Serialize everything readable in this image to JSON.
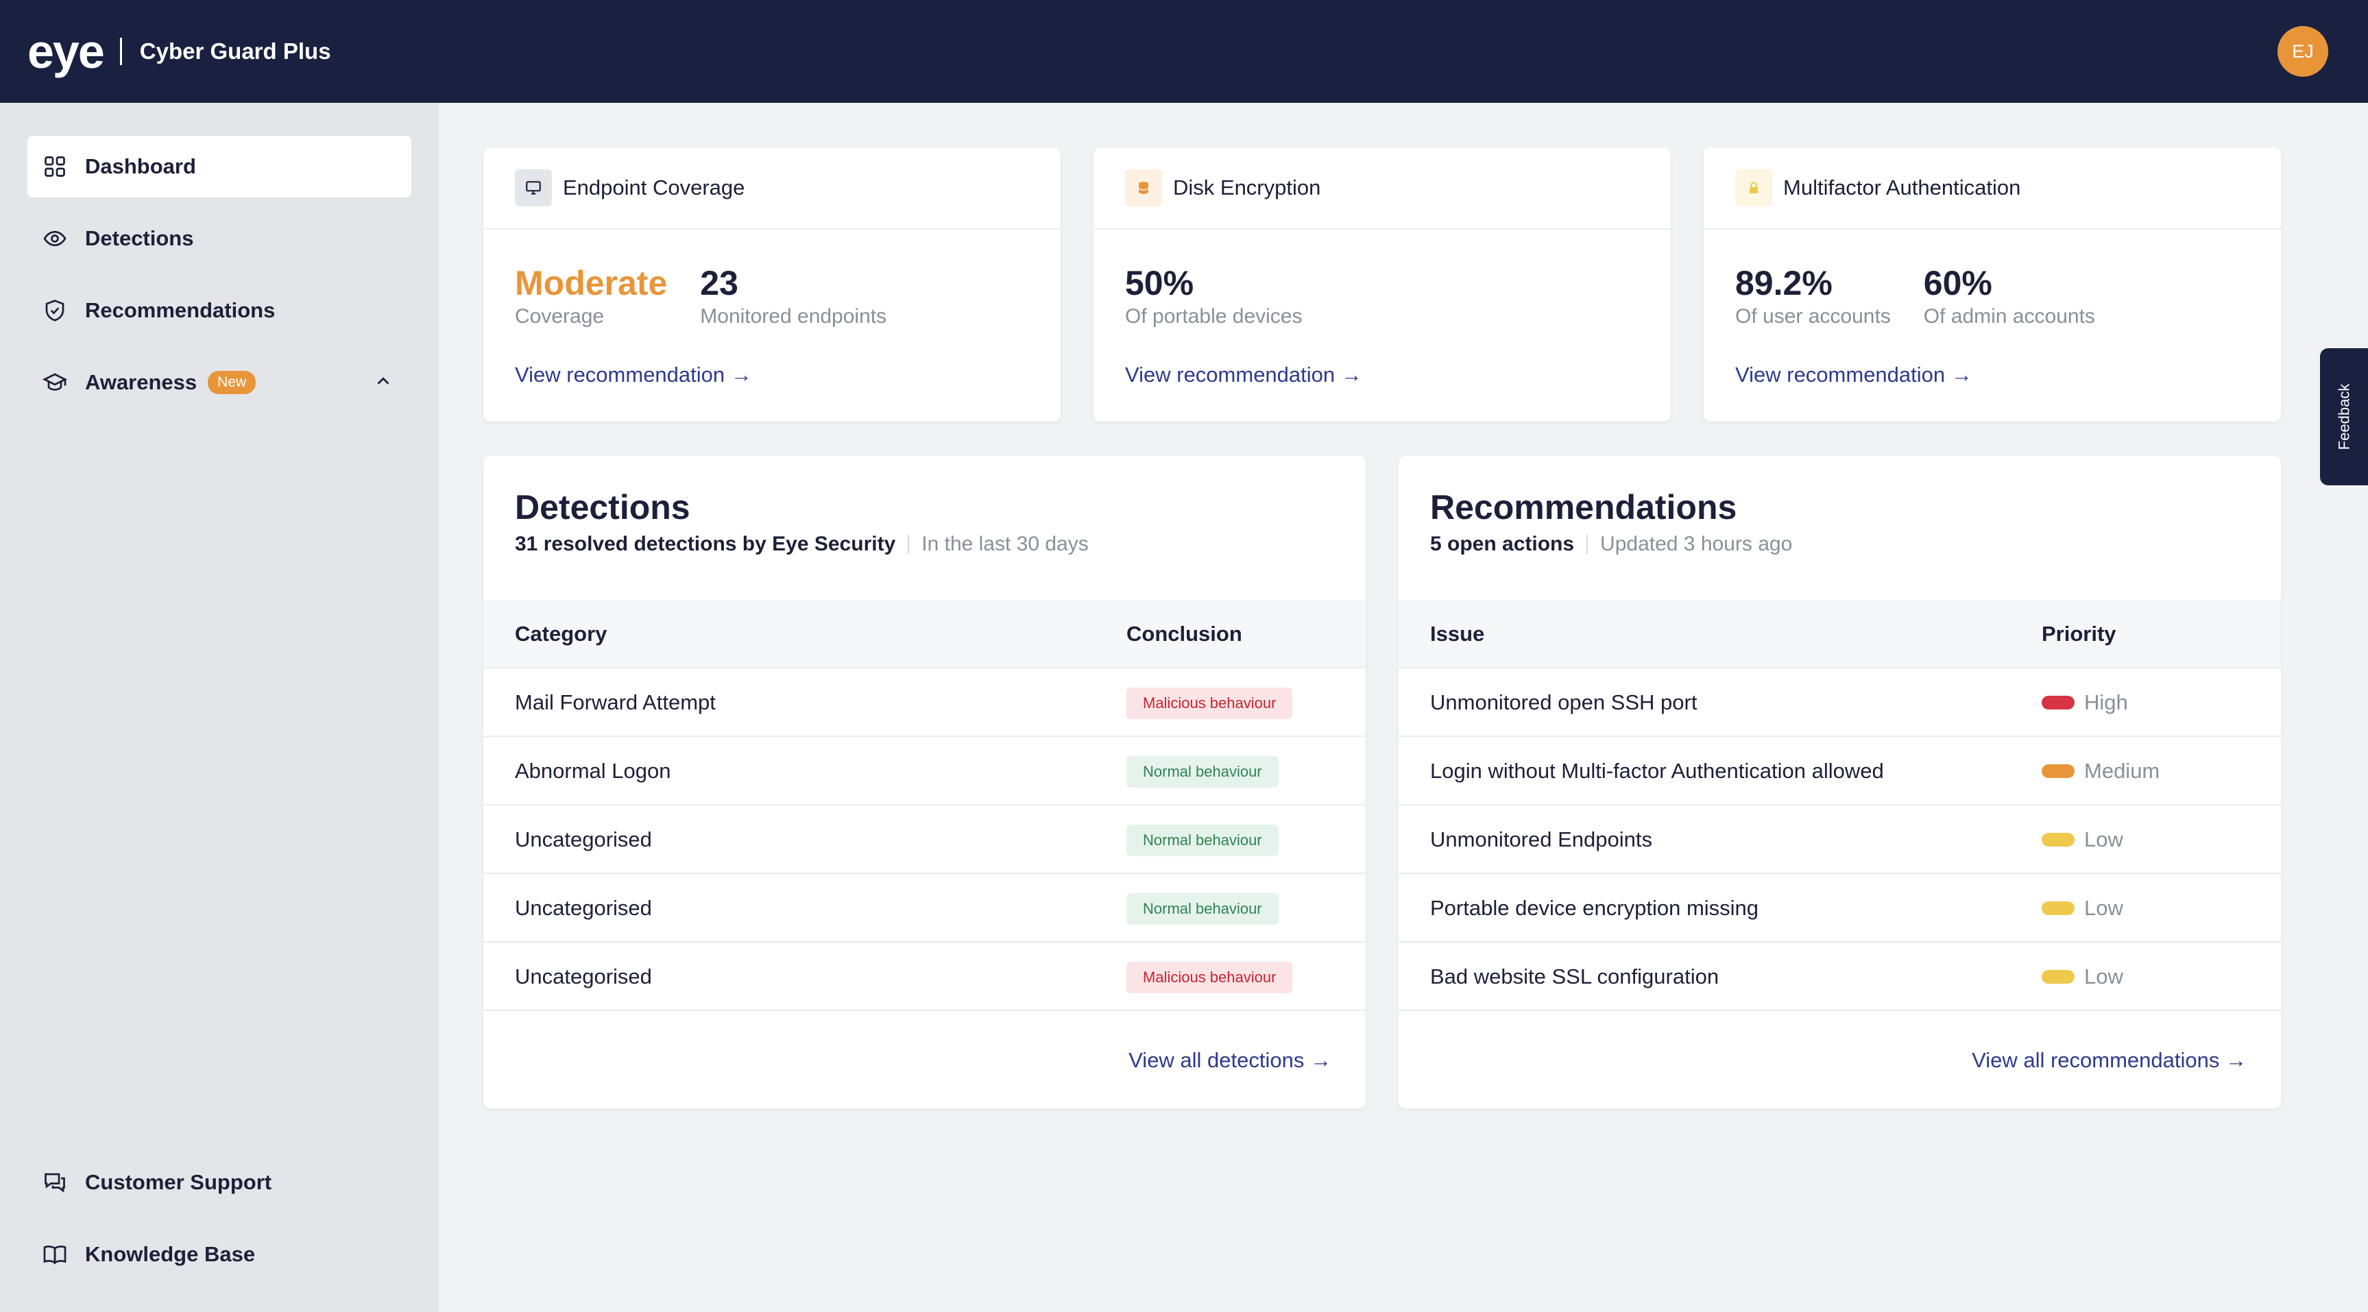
{
  "app": {
    "logo_text": "eye",
    "product_name": "Cyber Guard Plus",
    "user_initials": "EJ"
  },
  "sidebar": {
    "items": [
      {
        "label": "Dashboard",
        "icon": "grid-icon",
        "active": true
      },
      {
        "label": "Detections",
        "icon": "eye-icon"
      },
      {
        "label": "Recommendations",
        "icon": "shield-check-icon"
      },
      {
        "label": "Awareness",
        "icon": "graduation-cap-icon",
        "badge": "New",
        "expanded": true
      }
    ],
    "bottom_items": [
      {
        "label": "Customer Support",
        "icon": "chat-bubbles-icon"
      },
      {
        "label": "Knowledge Base",
        "icon": "book-open-icon"
      }
    ]
  },
  "stats": {
    "endpoint": {
      "title": "Endpoint Coverage",
      "coverage_value": "Moderate",
      "coverage_label": "Coverage",
      "monitored_value": "23",
      "monitored_label": "Monitored endpoints",
      "link": "View recommendation →"
    },
    "disk": {
      "title": "Disk Encryption",
      "value": "50%",
      "label": "Of portable devices",
      "link": "View recommendation →"
    },
    "mfa": {
      "title": "Multifactor Authentication",
      "user_value": "89.2%",
      "user_label": "Of user accounts",
      "admin_value": "60%",
      "admin_label": "Of admin accounts",
      "link": "View recommendation →"
    }
  },
  "detections": {
    "title": "Detections",
    "subtitle": "31 resolved detections by Eye Security",
    "period": "In the last 30 days",
    "columns": [
      "Category",
      "Conclusion"
    ],
    "rows": [
      {
        "category": "Mail Forward Attempt",
        "conclusion": "Malicious behaviour",
        "type": "malicious"
      },
      {
        "category": "Abnormal Logon",
        "conclusion": "Normal behaviour",
        "type": "normal"
      },
      {
        "category": "Uncategorised",
        "conclusion": "Normal behaviour",
        "type": "normal"
      },
      {
        "category": "Uncategorised",
        "conclusion": "Normal behaviour",
        "type": "normal"
      },
      {
        "category": "Uncategorised",
        "conclusion": "Malicious behaviour",
        "type": "malicious"
      }
    ],
    "link": "View all detections →"
  },
  "recommendations": {
    "title": "Recommendations",
    "subtitle": "5 open actions",
    "updated": "Updated 3 hours ago",
    "columns": [
      "Issue",
      "Priority"
    ],
    "rows": [
      {
        "issue": "Unmonitored open SSH port",
        "priority": "High",
        "color": "#d63344"
      },
      {
        "issue": "Login without Multi-factor Authentication allowed",
        "priority": "Medium",
        "color": "#e8953a"
      },
      {
        "issue": "Unmonitored Endpoints",
        "priority": "Low",
        "color": "#efc94c"
      },
      {
        "issue": "Portable device encryption missing",
        "priority": "Low",
        "color": "#efc94c"
      },
      {
        "issue": "Bad website SSL configuration",
        "priority": "Low",
        "color": "#efc94c"
      }
    ],
    "link": "View all recommendations →"
  },
  "feedback_label": "Feedback",
  "colors": {
    "navy": "#1a2040",
    "accent": "#e8953a",
    "link": "#2d3a8c"
  }
}
